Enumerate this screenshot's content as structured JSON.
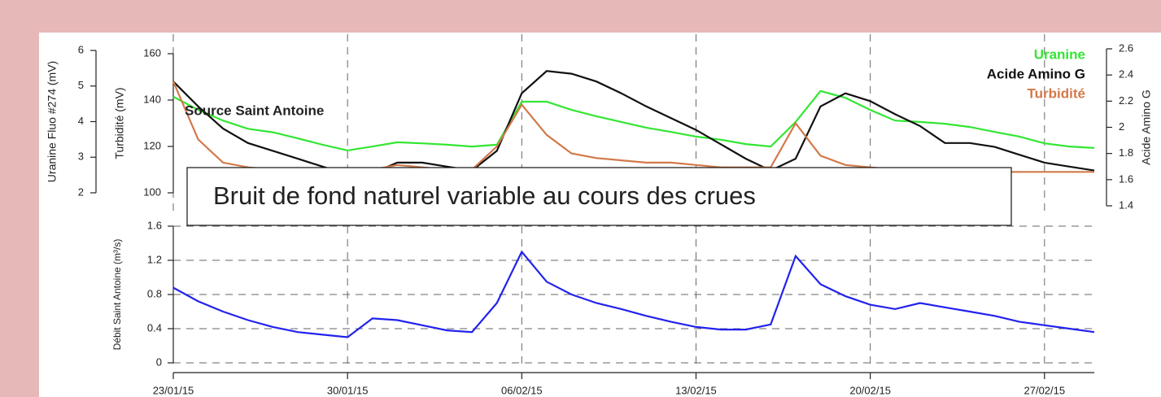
{
  "chart_data": [
    {
      "type": "line",
      "annotations": [
        "Source Saint Antoine",
        "Bruit de fond naturel variable au cours des crues"
      ],
      "ylabel": "Turbidité (mV)",
      "ylim": [
        100,
        160
      ],
      "yticks": [
        100,
        120,
        140,
        160
      ],
      "y2label": "Acide Amino G",
      "y2lim": [
        1.4,
        2.6
      ],
      "y2ticks": [
        1.4,
        1.6,
        1.8,
        2,
        2.2,
        2.4,
        2.6
      ],
      "y3label": "Uranine Fluo #274 (mV)",
      "y3lim": [
        2,
        6
      ],
      "y3ticks": [
        2,
        3,
        4,
        5,
        6
      ],
      "xlim": [
        "2015-01-23",
        "2015-03-01"
      ],
      "xticks": [
        {
          "value": "2015-01-23",
          "label": "23/01/15"
        },
        {
          "value": "2015-01-30",
          "label": "30/01/15"
        },
        {
          "value": "2015-02-06",
          "label": "06/02/15"
        },
        {
          "value": "2015-02-13",
          "label": "13/02/15"
        },
        {
          "value": "2015-02-20",
          "label": "20/02/15"
        },
        {
          "value": "2015-02-27",
          "label": "27/02/15"
        }
      ],
      "grid": true,
      "legend": "upper right",
      "x": [
        "2015-01-23",
        "2015-01-24",
        "2015-01-25",
        "2015-01-26",
        "2015-01-27",
        "2015-01-28",
        "2015-01-29",
        "2015-01-30",
        "2015-01-31",
        "2015-02-01",
        "2015-02-02",
        "2015-02-03",
        "2015-02-04",
        "2015-02-05",
        "2015-02-06",
        "2015-02-07",
        "2015-02-08",
        "2015-02-09",
        "2015-02-10",
        "2015-02-11",
        "2015-02-12",
        "2015-02-13",
        "2015-02-14",
        "2015-02-15",
        "2015-02-16",
        "2015-02-17",
        "2015-02-18",
        "2015-02-19",
        "2015-02-20",
        "2015-02-21",
        "2015-02-22",
        "2015-02-23",
        "2015-02-24",
        "2015-02-25",
        "2015-02-26",
        "2015-02-27",
        "2015-02-28",
        "2015-03-01"
      ],
      "series": [
        {
          "name": "Uranine",
          "color": "#33e633",
          "axis": "y3",
          "values": [
            4.7,
            4.33,
            4.03,
            3.8,
            3.7,
            3.53,
            3.35,
            3.19,
            3.3,
            3.42,
            3.39,
            3.35,
            3.3,
            3.35,
            4.56,
            4.56,
            4.33,
            4.15,
            3.99,
            3.83,
            3.71,
            3.58,
            3.49,
            3.37,
            3.3,
            3.99,
            4.86,
            4.67,
            4.33,
            4.03,
            3.99,
            3.94,
            3.85,
            3.71,
            3.58,
            3.39,
            3.3,
            3.26
          ]
        },
        {
          "name": "Acide Amino G",
          "color": "#111111",
          "axis": "y2",
          "values": [
            2.35,
            2.16,
            1.99,
            1.88,
            1.82,
            1.76,
            1.7,
            1.64,
            1.65,
            1.73,
            1.73,
            1.7,
            1.67,
            1.82,
            2.26,
            2.43,
            2.41,
            2.35,
            2.26,
            2.16,
            2.07,
            1.98,
            1.87,
            1.76,
            1.67,
            1.76,
            2.16,
            2.26,
            2.2,
            2.1,
            2.01,
            1.88,
            1.88,
            1.85,
            1.79,
            1.73,
            1.7,
            1.67
          ]
        },
        {
          "name": "Turbidité",
          "color": "#d2794a",
          "axis": "y",
          "values": [
            148,
            123,
            113,
            111,
            110,
            109,
            108,
            108,
            110,
            112,
            111,
            110,
            110,
            120,
            138,
            125,
            117,
            115,
            114,
            113,
            113,
            112,
            111,
            111,
            111,
            130,
            116,
            112,
            111,
            110,
            110,
            110,
            109,
            109,
            109,
            109,
            109,
            109
          ]
        }
      ]
    },
    {
      "type": "line",
      "ylabel": "Débit Saint Antoine (m³/s)",
      "ylim": [
        0,
        1.6
      ],
      "yticks": [
        0,
        0.4,
        0.8,
        1.2,
        1.6
      ],
      "xlim": [
        "2015-01-23",
        "2015-03-01"
      ],
      "xticks": [
        {
          "value": "2015-01-23",
          "label": "23/01/15"
        },
        {
          "value": "2015-01-30",
          "label": "30/01/15"
        },
        {
          "value": "2015-02-06",
          "label": "06/02/15"
        },
        {
          "value": "2015-02-13",
          "label": "13/02/15"
        },
        {
          "value": "2015-02-20",
          "label": "20/02/15"
        },
        {
          "value": "2015-02-27",
          "label": "27/02/15"
        }
      ],
      "grid": true,
      "x": [
        "2015-01-23",
        "2015-01-24",
        "2015-01-25",
        "2015-01-26",
        "2015-01-27",
        "2015-01-28",
        "2015-01-29",
        "2015-01-30",
        "2015-01-31",
        "2015-02-01",
        "2015-02-02",
        "2015-02-03",
        "2015-02-04",
        "2015-02-05",
        "2015-02-06",
        "2015-02-07",
        "2015-02-08",
        "2015-02-09",
        "2015-02-10",
        "2015-02-11",
        "2015-02-12",
        "2015-02-13",
        "2015-02-14",
        "2015-02-15",
        "2015-02-16",
        "2015-02-17",
        "2015-02-18",
        "2015-02-19",
        "2015-02-20",
        "2015-02-21",
        "2015-02-22",
        "2015-02-23",
        "2015-02-24",
        "2015-02-25",
        "2015-02-26",
        "2015-02-27",
        "2015-02-28",
        "2015-03-01"
      ],
      "series": [
        {
          "name": "Débit",
          "color": "#2222ee",
          "values": [
            0.88,
            0.72,
            0.6,
            0.5,
            0.42,
            0.36,
            0.33,
            0.3,
            0.52,
            0.5,
            0.44,
            0.38,
            0.36,
            0.7,
            1.3,
            0.95,
            0.8,
            0.7,
            0.63,
            0.55,
            0.48,
            0.42,
            0.39,
            0.39,
            0.45,
            1.25,
            0.92,
            0.78,
            0.68,
            0.63,
            0.7,
            0.65,
            0.6,
            0.55,
            0.48,
            0.44,
            0.4,
            0.36
          ]
        }
      ]
    }
  ]
}
